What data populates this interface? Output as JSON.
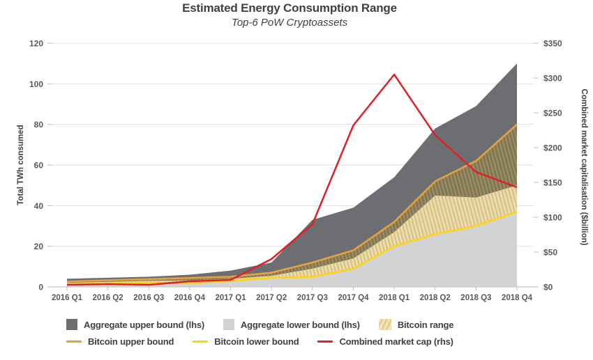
{
  "title": "Estimated Energy Consumption Range",
  "subtitle": "Top-6 PoW Cryptoassets",
  "chart_data": {
    "type": "area",
    "title": "Estimated Energy Consumption Range",
    "subtitle": "Top-6 PoW Cryptoassets",
    "x_categories": [
      "2016 Q1",
      "2016 Q2",
      "2016 Q3",
      "2016 Q4",
      "2017 Q1",
      "2017 Q2",
      "2017 Q3",
      "2017 Q4",
      "2018 Q1",
      "2018 Q2",
      "2018 Q3",
      "2018 Q4"
    ],
    "left_axis": {
      "label": "Total TWh consumed",
      "min": 0,
      "max": 120,
      "ticks": [
        0,
        20,
        40,
        60,
        80,
        100,
        120
      ],
      "tick_prefix": ""
    },
    "right_axis": {
      "label": "Combined market capitalisation ($billion)",
      "min": 0,
      "max": 350,
      "ticks": [
        0,
        50,
        100,
        150,
        200,
        250,
        300,
        350
      ],
      "tick_prefix": "$"
    },
    "grid": "horizontal",
    "series": [
      {
        "name": "Aggregate upper bound (lhs)",
        "axis": "left",
        "kind": "area",
        "values": [
          4,
          4.5,
          5,
          6,
          8,
          12,
          33,
          39,
          54,
          78,
          89,
          110
        ]
      },
      {
        "name": "Aggregate lower bound (lhs)",
        "axis": "left",
        "kind": "area",
        "values": [
          2,
          2.5,
          3,
          3.2,
          4,
          5.5,
          9,
          14,
          27,
          45,
          44,
          50
        ]
      },
      {
        "name": "Bitcoin upper bound",
        "axis": "left",
        "kind": "line",
        "values": [
          2.6,
          3.3,
          3.8,
          4.4,
          5,
          7,
          12,
          18,
          32,
          52,
          62,
          80
        ]
      },
      {
        "name": "Bitcoin lower bound",
        "axis": "left",
        "kind": "line",
        "values": [
          1.3,
          1.5,
          2,
          2,
          3,
          4.5,
          5,
          9,
          20,
          26,
          30,
          37
        ]
      },
      {
        "name": "Combined market cap (rhs)",
        "axis": "right",
        "kind": "line",
        "values": [
          3,
          4,
          3,
          8,
          10,
          40,
          90,
          232,
          305,
          218,
          165,
          143
        ]
      }
    ],
    "bitcoin_range": {
      "name": "Bitcoin range",
      "between": [
        "Bitcoin lower bound",
        "Bitcoin upper bound"
      ]
    },
    "legend_position": "bottom"
  },
  "legend": {
    "rows": [
      [
        {
          "label": "Aggregate upper bound (lhs)",
          "swatch": "area-dark"
        },
        {
          "label": "Aggregate lower bound (lhs)",
          "swatch": "area-light"
        },
        {
          "label": "Bitcoin range",
          "swatch": "hatch"
        }
      ],
      [
        {
          "label": "Bitcoin upper bound",
          "swatch": "line-orange"
        },
        {
          "label": "Bitcoin lower bound",
          "swatch": "line-yellow"
        },
        {
          "label": "Combined market cap (rhs)",
          "swatch": "line-red"
        }
      ]
    ]
  },
  "colors": {
    "aggregate_dark": "#6d6e71",
    "aggregate_light": "#d1d3d4",
    "hatch_light_bg": "#ecdfb0",
    "hatch_light_stripe": "#d9c288",
    "hatch_dark_bg": "#7e7557",
    "hatch_dark_stripe": "#9c8d60",
    "bitcoin_upper": "#e8a33d",
    "bitcoin_lower": "#ffd40c",
    "market_cap": "#e01f26",
    "grid": "#e1e2e3",
    "axis": "#c8c9cb",
    "tick": "#b9bbbd",
    "text_dark": "#414042",
    "text_tick": "#58595b"
  }
}
